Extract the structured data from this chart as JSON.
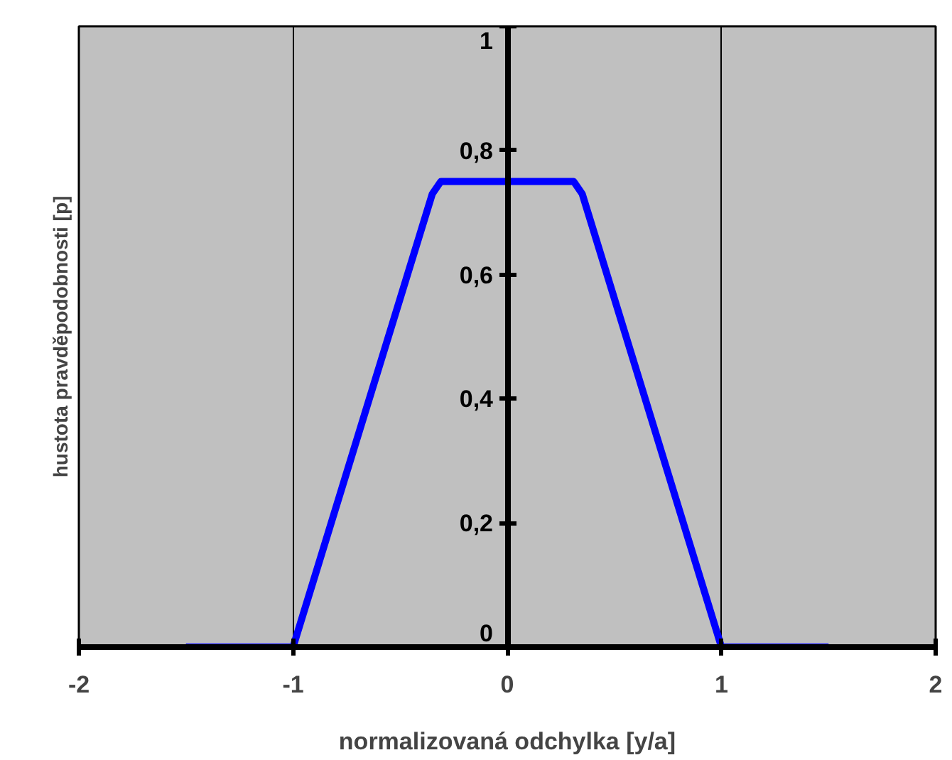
{
  "chart_data": {
    "type": "line",
    "xlabel": "normalizovaná odchylka [y/a]",
    "ylabel": "hustota pravděpodobnosti [p]",
    "x": [
      -1.5,
      -1,
      -0.35,
      -0.31,
      0.31,
      0.35,
      1,
      1.5
    ],
    "series": [
      {
        "color": "#0000ff",
        "values": [
          0,
          0,
          0.73,
          0.75,
          0.75,
          0.73,
          0,
          0
        ]
      }
    ],
    "xlim": [
      -2,
      2
    ],
    "ylim": [
      0,
      1
    ],
    "xticks": [
      -2,
      -1,
      0,
      1,
      2
    ],
    "yticks": [
      {
        "value": 0,
        "label": "0"
      },
      {
        "value": 0.2,
        "label": "0,2"
      },
      {
        "value": 0.4,
        "label": "0,4"
      },
      {
        "value": 0.6,
        "label": "0,6"
      },
      {
        "value": 0.8,
        "label": "0,8"
      },
      {
        "value": 1,
        "label": "1"
      }
    ],
    "grid": "x",
    "marker": "none",
    "line_style": "solid"
  }
}
